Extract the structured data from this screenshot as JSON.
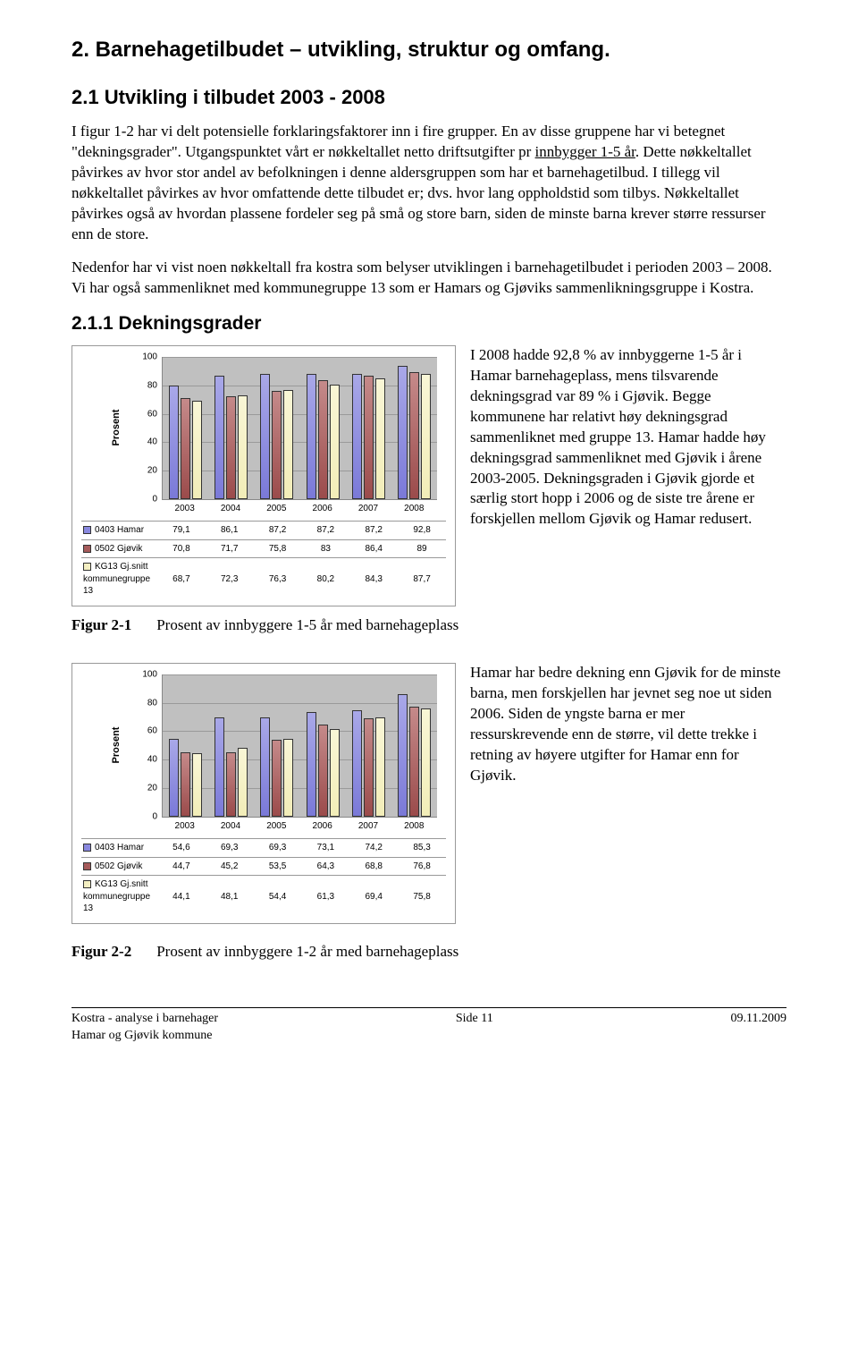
{
  "h1": "2.   Barnehagetilbudet – utvikling, struktur og omfang.",
  "h2": "2.1   Utvikling i tilbudet 2003 - 2008",
  "p1a": "I figur 1-2 har vi delt potensielle forklaringsfaktorer inn i fire grupper. En av disse gruppene har vi betegnet \"dekningsgrader\". Utgangspunktet vårt er nøkkeltallet netto driftsutgifter pr ",
  "p1u": "innbygger 1-5 år",
  "p1b": ". Dette nøkkeltallet påvirkes av hvor stor andel av befolkningen i denne aldersgruppen som har et barnehagetilbud. I tillegg vil nøkkeltallet påvirkes av hvor omfattende dette tilbudet er; dvs. hvor lang oppholdstid som tilbys. Nøkkeltallet påvirkes også av hvordan plassene fordeler seg på små og store barn, siden de minste barna krever større ressurser enn de store.",
  "p2": "Nedenfor har vi vist noen nøkkeltall fra kostra som belyser utviklingen i barnehagetilbudet i perioden 2003 – 2008. Vi har også sammenliknet med kommunegruppe 13 som er Hamars og Gjøviks sammenlikningsgruppe i Kostra.",
  "h3": "2.1.1 Dekningsgrader",
  "ylabel": "Prosent",
  "legend": {
    "a": "0403 Hamar",
    "b": "0502 Gjøvik",
    "c": "KG13 Gj.snitt kommunegruppe 13"
  },
  "colors": {
    "a": "#8988df",
    "b": "#a65b5b",
    "c": "#f4efc2",
    "plot_bg": "#c0c0c0",
    "grid": "#9a9a9a"
  },
  "chart1": {
    "categories": [
      "2003",
      "2004",
      "2005",
      "2006",
      "2007",
      "2008"
    ],
    "ymax": 100,
    "ystep": 20,
    "hamar": [
      79.1,
      86.1,
      87.2,
      87.2,
      87.2,
      92.8
    ],
    "gjovik": [
      70.8,
      71.7,
      75.8,
      83,
      86.4,
      89
    ],
    "kg13": [
      68.7,
      72.3,
      76.3,
      80.2,
      84.3,
      87.7
    ],
    "display": {
      "hamar": [
        "79,1",
        "86,1",
        "87,2",
        "87,2",
        "87,2",
        "92,8"
      ],
      "gjovik": [
        "70,8",
        "71,7",
        "75,8",
        "83",
        "86,4",
        "89"
      ],
      "kg13": [
        "68,7",
        "72,3",
        "76,3",
        "80,2",
        "84,3",
        "87,7"
      ]
    }
  },
  "chart2": {
    "categories": [
      "2003",
      "2004",
      "2005",
      "2006",
      "2007",
      "2008"
    ],
    "ymax": 100,
    "ystep": 20,
    "hamar": [
      54.6,
      69.3,
      69.3,
      73.1,
      74.2,
      85.3
    ],
    "gjovik": [
      44.7,
      45.2,
      53.5,
      64.3,
      68.8,
      76.8
    ],
    "kg13": [
      44.1,
      48.1,
      54.4,
      61.3,
      69.4,
      75.8
    ],
    "display": {
      "hamar": [
        "54,6",
        "69,3",
        "69,3",
        "73,1",
        "74,2",
        "85,3"
      ],
      "gjovik": [
        "44,7",
        "45,2",
        "53,5",
        "64,3",
        "68,8",
        "76,8"
      ],
      "kg13": [
        "44,1",
        "48,1",
        "54,4",
        "61,3",
        "69,4",
        "75,8"
      ]
    }
  },
  "side1": "I 2008 hadde 92,8 % av innbyggerne 1-5 år i Hamar barnehageplass, mens tilsvarende dekningsgrad var 89 % i Gjøvik. Begge kommunene har relativt høy dekningsgrad sammenliknet med gruppe 13. Hamar hadde høy dekningsgrad sammenliknet med Gjøvik i årene 2003-2005. Dekningsgraden i Gjøvik gjorde et særlig stort hopp i 2006 og de siste tre årene er forskjellen mellom Gjøvik og Hamar redusert.",
  "side2": "Hamar har bedre dekning enn Gjøvik for de minste barna, men forskjellen har jevnet seg noe ut siden 2006. Siden de yngste barna er mer ressurskrevende enn de større, vil dette trekke i retning av høyere utgifter for Hamar enn for Gjøvik.",
  "fig1_label": "Figur 2-1",
  "fig1_cap": "Prosent av innbyggere 1-5 år med barnehageplass",
  "fig2_label": "Figur 2-2",
  "fig2_cap": "Prosent av innbyggere 1-2 år med barnehageplass",
  "footer_left1": "Kostra - analyse i barnehager",
  "footer_left2": "Hamar og Gjøvik kommune",
  "footer_mid": "Side 11",
  "footer_right": "09.11.2009"
}
